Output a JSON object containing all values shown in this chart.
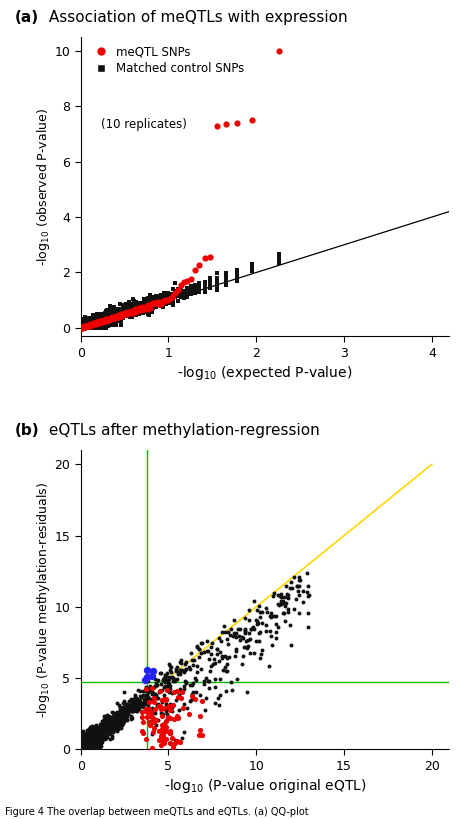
{
  "panel_a": {
    "title_bold": "(a)",
    "title_rest": " Association of meQTLs with expression",
    "xlabel": "-log$_{10}$ (expected P-value)",
    "ylabel": "-log$_{10}$ (observed P-value)",
    "xlim": [
      0,
      4.2
    ],
    "ylim": [
      -0.3,
      10.5
    ],
    "xticks": [
      0,
      1,
      2,
      3,
      4
    ],
    "yticks": [
      0,
      2,
      4,
      6,
      8,
      10
    ],
    "diagonal_color": "#000000",
    "red_color": "#EE0000",
    "black_color": "#111111",
    "legend_labels": [
      "meQTL SNPs",
      "Matched control SNPs",
      "(10 replicates)"
    ]
  },
  "panel_b": {
    "title_bold": "(b)",
    "title_rest": " eQTLs after methylation-regression",
    "xlabel": "-log$_{10}$ (P-value original eQTL)",
    "ylabel": "-log$_{10}$ (P-value methylation-residuals)",
    "xlim": [
      0,
      21
    ],
    "ylim": [
      0,
      21
    ],
    "xticks": [
      0,
      5,
      10,
      15,
      20
    ],
    "yticks": [
      0,
      5,
      10,
      15,
      20
    ],
    "diagonal_color": "#FFD700",
    "green_line_x": 3.8,
    "green_line_y": 4.7,
    "green_color": "#00BB00",
    "red_color": "#EE0000",
    "black_color": "#111111",
    "blue_color": "#2222EE"
  },
  "figure_caption": "Figure 4 The overlap between meQTLs and eQTLs. (a) QQ-plot"
}
